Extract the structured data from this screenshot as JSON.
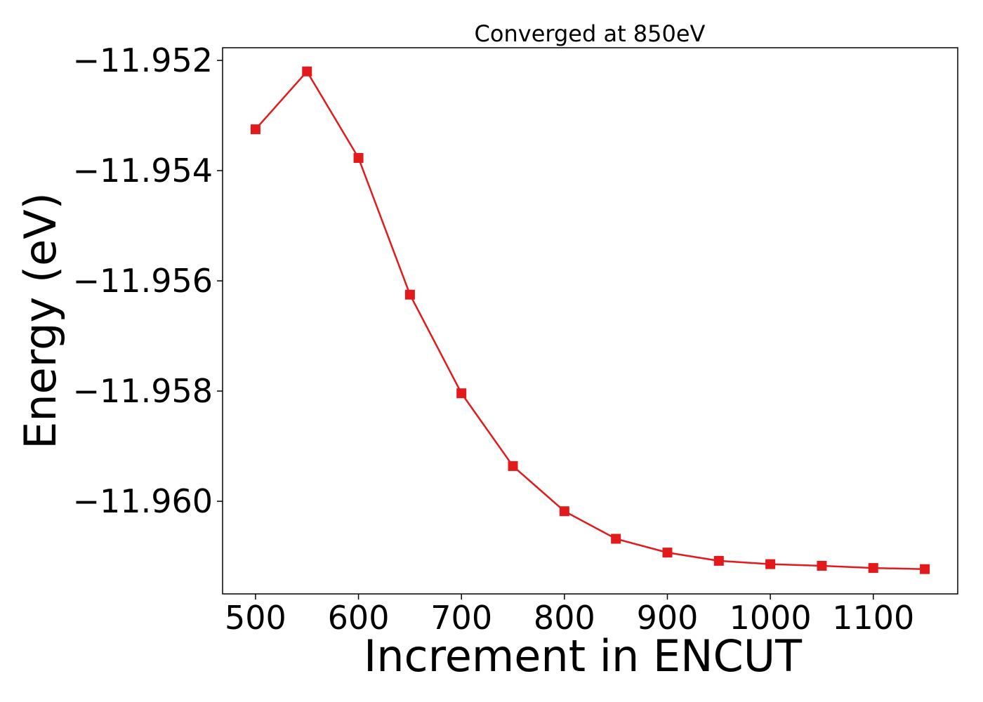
{
  "chart_data": {
    "type": "line",
    "title": "Converged at 850eV",
    "xlabel": "Increment in ENCUT",
    "ylabel": "Energy (eV)",
    "xlim": [
      468,
      1182
    ],
    "ylim": [
      -11.96168,
      -11.95177
    ],
    "x_ticks": [
      500,
      600,
      700,
      800,
      900,
      1000,
      1100
    ],
    "x_tick_labels": [
      "500",
      "600",
      "700",
      "800",
      "900",
      "1000",
      "1100"
    ],
    "y_ticks": [
      -11.952,
      -11.954,
      -11.956,
      -11.958,
      -11.96
    ],
    "y_tick_labels": [
      "−11.952",
      "−11.954",
      "−11.956",
      "−11.958",
      "−11.960"
    ],
    "grid": false,
    "series": [
      {
        "color": "#e31a1c",
        "marker": "square",
        "x": [
          500,
          550,
          600,
          650,
          700,
          750,
          800,
          850,
          900,
          950,
          1000,
          1050,
          1100,
          1150
        ],
        "y": [
          -11.95325,
          -11.9522,
          -11.95377,
          -11.95625,
          -11.95804,
          -11.95936,
          -11.96018,
          -11.96068,
          -11.96093,
          -11.96108,
          -11.96114,
          -11.96117,
          -11.96121,
          -11.96123
        ]
      }
    ]
  }
}
